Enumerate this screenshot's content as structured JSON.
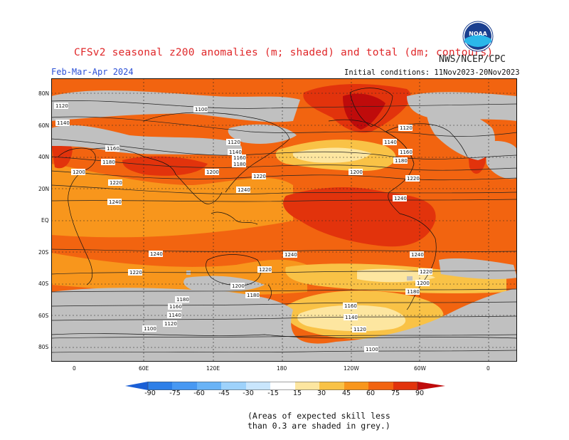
{
  "header": {
    "title": "CFSv2 seasonal z200 anomalies (m; shaded) and total (dm; contours)",
    "source": "NWS/NCEP/CPC",
    "season": "Feb-Mar-Apr 2024",
    "initial_conditions": "Initial conditions: 11Nov2023-20Nov2023",
    "logo_text": "NOAA"
  },
  "map": {
    "lat_labels": [
      "80N",
      "60N",
      "40N",
      "20N",
      "EQ",
      "20S",
      "40S",
      "60S",
      "80S"
    ],
    "lon_labels": [
      "0",
      "60E",
      "120E",
      "180",
      "120W",
      "60W",
      "0"
    ],
    "contour_labels": [
      "1100",
      "1120",
      "1140",
      "1160",
      "1180",
      "1200",
      "1220",
      "1240"
    ],
    "colors": {
      "grey": "#c0c0c0",
      "a15": "#fde6a0",
      "a30": "#f9c246",
      "a45": "#f8961c",
      "a60": "#f26410",
      "a75": "#e2330c",
      "a90": "#bf0b0b"
    }
  },
  "colorbar": {
    "labels": [
      "-90",
      "-75",
      "-60",
      "-45",
      "-30",
      "-15",
      "15",
      "30",
      "45",
      "60",
      "75",
      "90"
    ],
    "colors": [
      "#1a5fd6",
      "#2d7fe8",
      "#4798f2",
      "#69b3f6",
      "#9ed2fb",
      "#ffffff",
      "#fde6a0",
      "#f9c246",
      "#f8961c",
      "#f26410",
      "#e2330c",
      "#bf0b0b"
    ]
  },
  "note": {
    "line1": "(Areas of expected skill less",
    "line2": "than 0.3 are shaded in grey.)"
  }
}
